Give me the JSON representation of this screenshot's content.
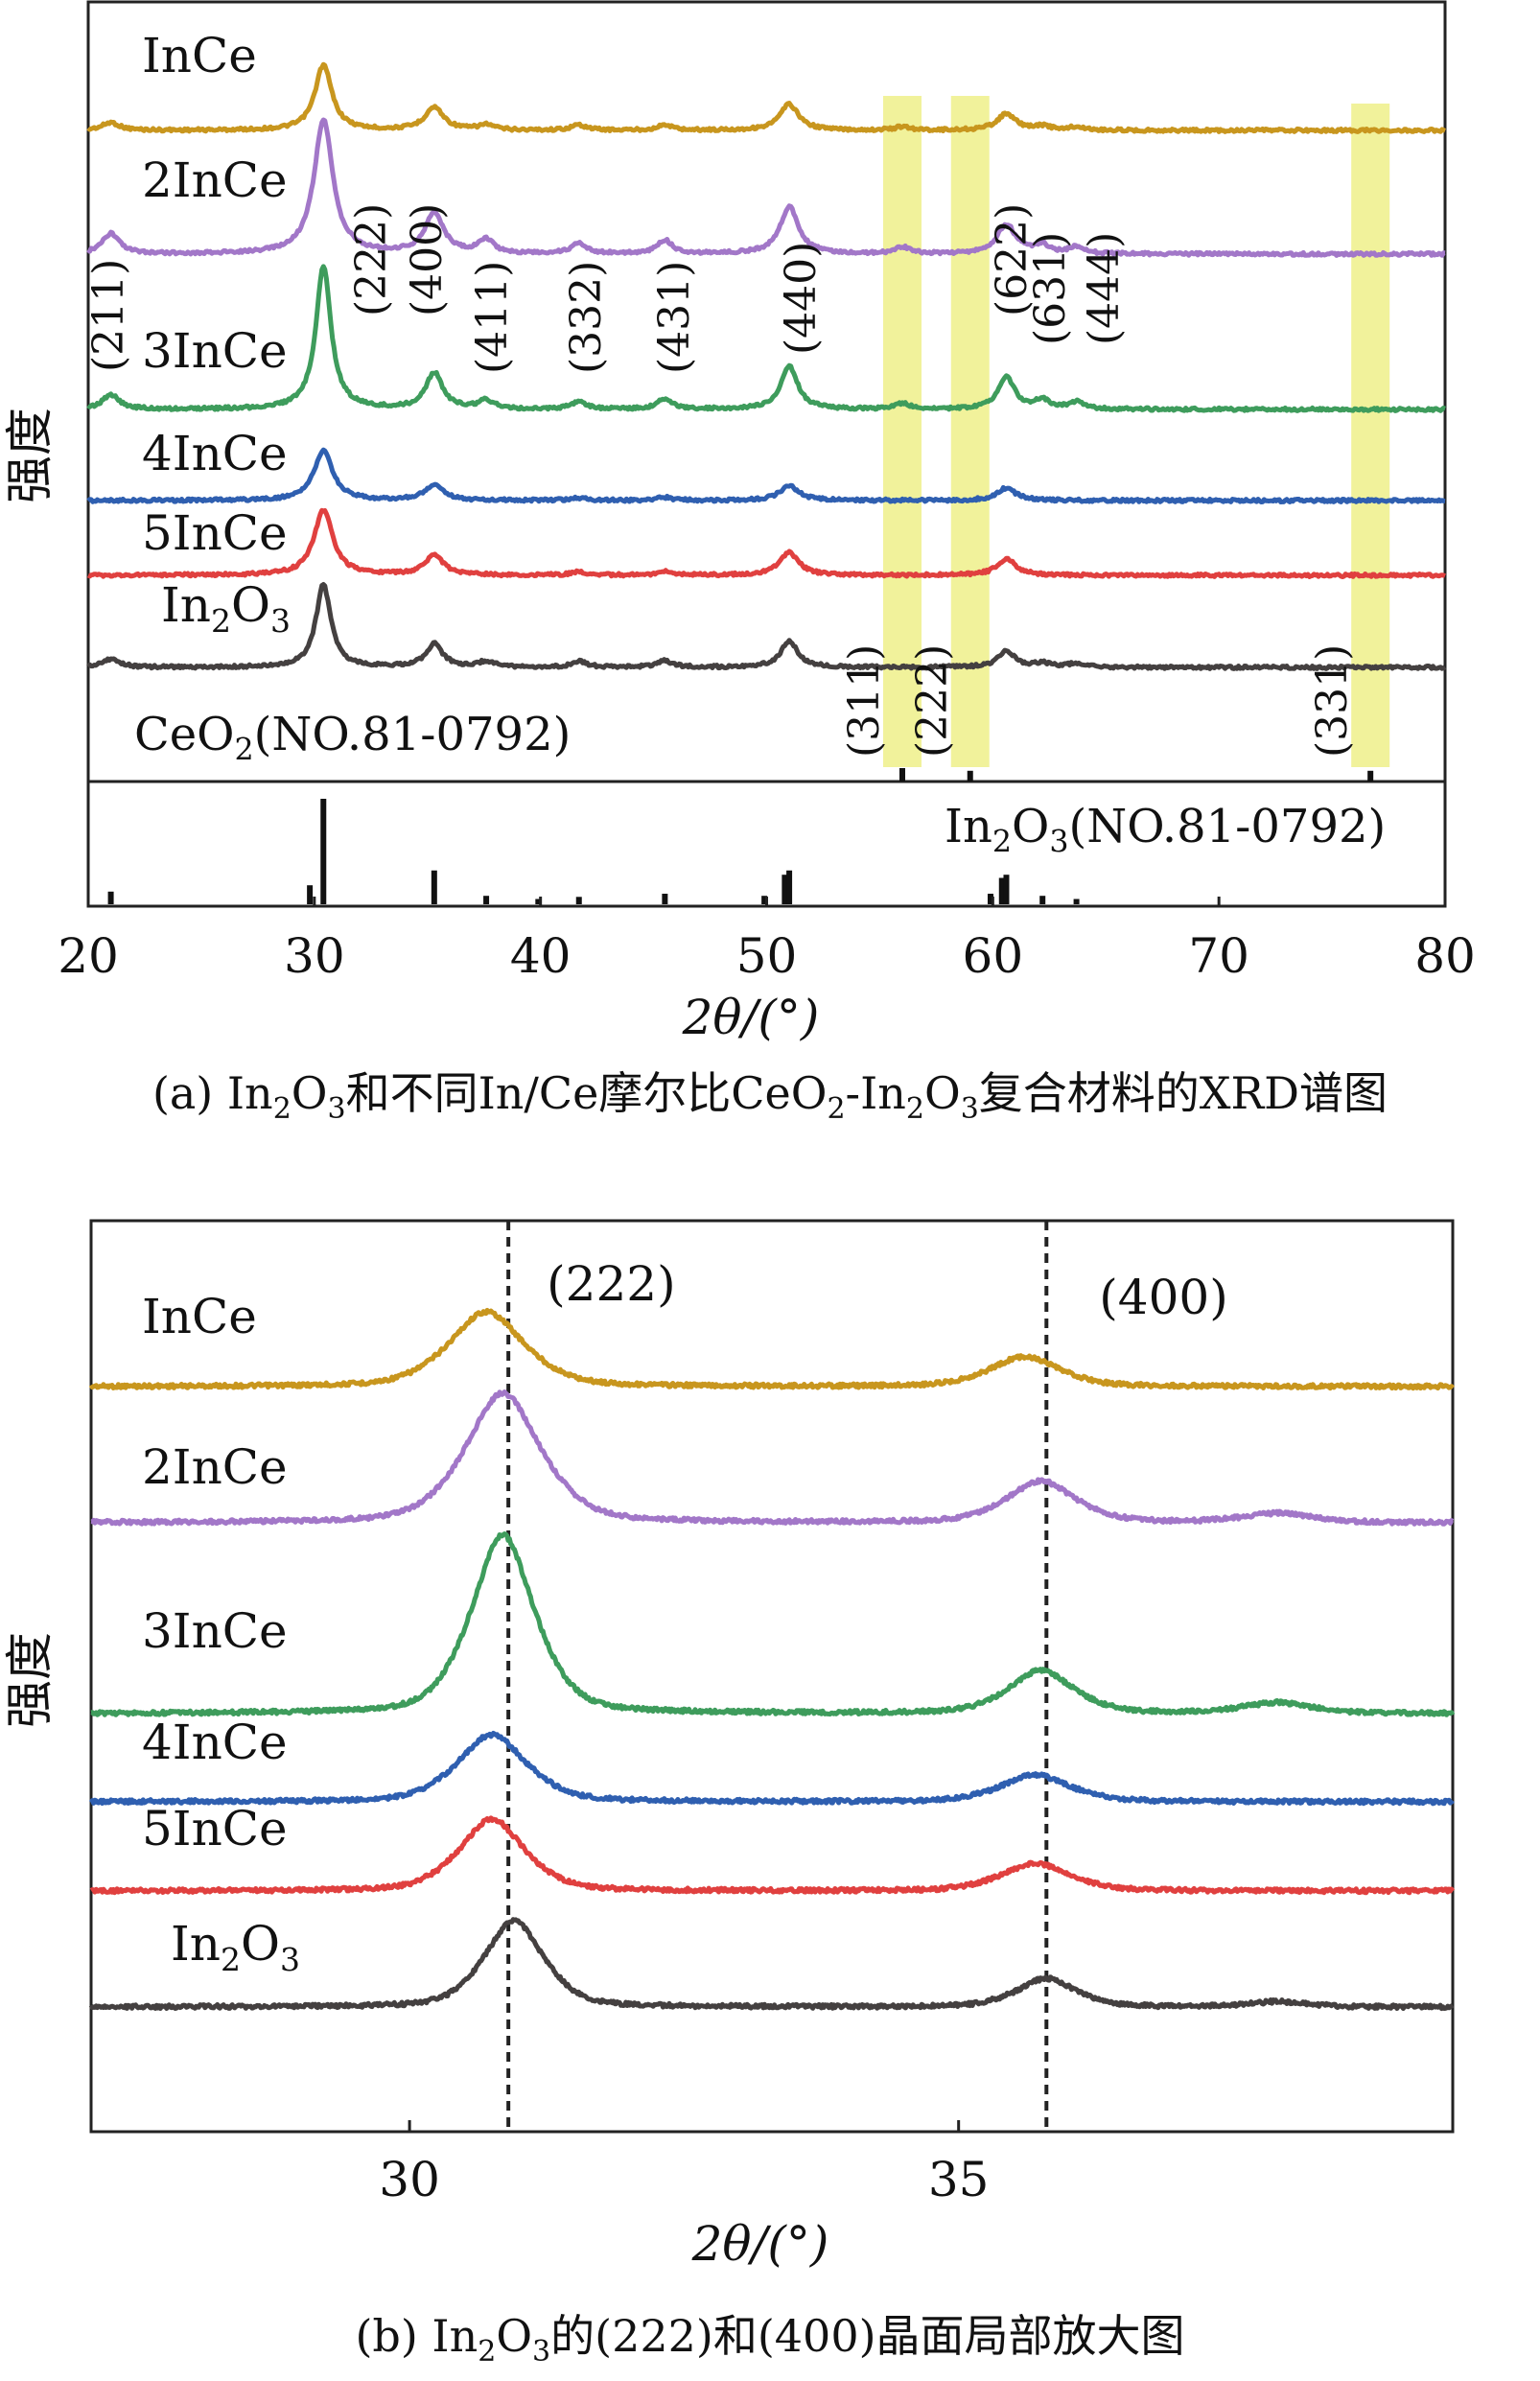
{
  "captions": {
    "a": {
      "pre": "(a) In",
      "s1": "2",
      "mid1": "O",
      "s2": "3",
      "mid2": "和不同In/Ce摩尔比CeO",
      "s3": "2",
      "mid3": "-In",
      "s4": "2",
      "mid4": "O",
      "s5": "3",
      "post": "复合材料的XRD谱图"
    },
    "b": {
      "pre": "(b) In",
      "s1": "2",
      "mid1": "O",
      "s2": "3",
      "post": "的(222)和(400)晶面局部放大图"
    }
  },
  "colors": {
    "InCe": "#c8961e",
    "2InCe": "#a277c8",
    "3InCe": "#3e9c5c",
    "4InCe": "#2f5fb0",
    "5InCe": "#e0403f",
    "In2O3": "#444040",
    "highlight": "#eef08a"
  },
  "chart_data": [
    {
      "type": "line",
      "panel": "a",
      "xlabel": "2θ/(°)",
      "ylabel": "强度",
      "xlim": [
        20,
        80
      ],
      "xticks": [
        20,
        30,
        40,
        50,
        60,
        70,
        80
      ],
      "grid": false,
      "series": [
        {
          "name": "InCe",
          "baseline": 0.92,
          "scale": 0.65,
          "peaks": [
            [
              21.0,
              0.12,
              0.45
            ],
            [
              30.4,
              1.0,
              0.45
            ],
            [
              35.3,
              0.35,
              0.5
            ],
            [
              37.6,
              0.08,
              0.4
            ],
            [
              41.7,
              0.08,
              0.4
            ],
            [
              45.5,
              0.08,
              0.4
            ],
            [
              51.0,
              0.4,
              0.5
            ],
            [
              56.0,
              0.05,
              0.4
            ],
            [
              60.6,
              0.25,
              0.5
            ],
            [
              62.2,
              0.06,
              0.4
            ],
            [
              63.7,
              0.05,
              0.4
            ]
          ]
        },
        {
          "name": "2InCe",
          "baseline": 0.92,
          "scale": 0.9,
          "peaks": [
            [
              21.0,
              0.15,
              0.45
            ],
            [
              30.4,
              1.0,
              0.5
            ],
            [
              35.3,
              0.3,
              0.5
            ],
            [
              37.6,
              0.1,
              0.4
            ],
            [
              41.7,
              0.08,
              0.4
            ],
            [
              45.5,
              0.1,
              0.4
            ],
            [
              51.0,
              0.35,
              0.5
            ],
            [
              56.0,
              0.05,
              0.4
            ],
            [
              60.6,
              0.22,
              0.5
            ],
            [
              62.2,
              0.06,
              0.4
            ],
            [
              63.7,
              0.05,
              0.4
            ]
          ]
        },
        {
          "name": "3InCe",
          "baseline": 0.93,
          "scale": 1.0,
          "peaks": [
            [
              21.0,
              0.1,
              0.45
            ],
            [
              30.4,
              1.0,
              0.4
            ],
            [
              35.3,
              0.25,
              0.45
            ],
            [
              37.6,
              0.06,
              0.4
            ],
            [
              41.7,
              0.05,
              0.4
            ],
            [
              45.5,
              0.07,
              0.4
            ],
            [
              51.0,
              0.3,
              0.45
            ],
            [
              56.0,
              0.04,
              0.4
            ],
            [
              60.6,
              0.22,
              0.45
            ],
            [
              62.2,
              0.06,
              0.4
            ],
            [
              63.7,
              0.05,
              0.4
            ]
          ]
        },
        {
          "name": "4InCe",
          "baseline": 0.95,
          "scale": 0.35,
          "peaks": [
            [
              30.4,
              1.0,
              0.5
            ],
            [
              35.3,
              0.3,
              0.5
            ],
            [
              51.0,
              0.3,
              0.5
            ],
            [
              60.6,
              0.25,
              0.5
            ],
            [
              41.7,
              0.05,
              0.4
            ],
            [
              45.5,
              0.06,
              0.4
            ]
          ]
        },
        {
          "name": "5InCe",
          "baseline": 0.95,
          "scale": 0.45,
          "peaks": [
            [
              30.4,
              1.0,
              0.5
            ],
            [
              35.3,
              0.3,
              0.5
            ],
            [
              51.0,
              0.35,
              0.5
            ],
            [
              60.6,
              0.25,
              0.5
            ],
            [
              41.7,
              0.05,
              0.4
            ],
            [
              45.5,
              0.06,
              0.4
            ]
          ]
        },
        {
          "name": "In2O3",
          "baseline": 0.92,
          "scale": 0.58,
          "peaks": [
            [
              21.0,
              0.1,
              0.45
            ],
            [
              30.4,
              1.0,
              0.4
            ],
            [
              35.3,
              0.28,
              0.45
            ],
            [
              37.6,
              0.07,
              0.4
            ],
            [
              41.7,
              0.07,
              0.4
            ],
            [
              45.5,
              0.08,
              0.4
            ],
            [
              51.0,
              0.32,
              0.45
            ],
            [
              60.6,
              0.2,
              0.45
            ],
            [
              62.2,
              0.05,
              0.4
            ],
            [
              63.7,
              0.05,
              0.4
            ]
          ]
        }
      ],
      "series_labels": [
        {
          "text": "InCe"
        },
        {
          "text": "2InCe"
        },
        {
          "text": "3InCe"
        },
        {
          "text": "4InCe"
        },
        {
          "text": "5InCe"
        },
        {
          "pre": "In",
          "s1": "2",
          "mid": "O",
          "s2": "3"
        }
      ],
      "miller_In2O3": [
        {
          "label": "(211)",
          "x": 21.0
        },
        {
          "label": "(222)",
          "x": 32.8
        },
        {
          "label": "(400)",
          "x": 35.3
        },
        {
          "label": "(411)",
          "x": 37.6
        },
        {
          "label": "(332)",
          "x": 41.7
        },
        {
          "label": "(431)",
          "x": 45.5
        },
        {
          "label": "(440)",
          "x": 51.0
        },
        {
          "label": "(622)",
          "x": 60.6
        },
        {
          "label": "(631)",
          "x": 62.2
        },
        {
          "label": "(444)",
          "x": 63.7
        }
      ],
      "highlight_bands_x": [
        56.0,
        59.0,
        76.7
      ],
      "miller_CeO2": [
        {
          "label": "(311)",
          "x": 56.0
        },
        {
          "label": "(222)",
          "x": 59.0
        },
        {
          "label": "(331)",
          "x": 76.7
        }
      ],
      "ref_labels": {
        "CeO2": {
          "pre": "CeO",
          "s1": "2",
          "post": "(NO.81-0792)"
        },
        "In2O3": {
          "pre": "In",
          "s1": "2",
          "mid": "O",
          "s2": "3",
          "post": "(NO.81-0792)"
        }
      },
      "reference_In2O3_sticks": [
        {
          "x": 21.0,
          "h": 0.12
        },
        {
          "x": 29.8,
          "h": 0.18
        },
        {
          "x": 30.4,
          "h": 1.0
        },
        {
          "x": 35.3,
          "h": 0.32
        },
        {
          "x": 37.6,
          "h": 0.08
        },
        {
          "x": 39.9,
          "h": 0.05
        },
        {
          "x": 41.7,
          "h": 0.07
        },
        {
          "x": 45.5,
          "h": 0.1
        },
        {
          "x": 49.9,
          "h": 0.08
        },
        {
          "x": 50.8,
          "h": 0.28
        },
        {
          "x": 51.0,
          "h": 0.32
        },
        {
          "x": 59.9,
          "h": 0.1
        },
        {
          "x": 60.4,
          "h": 0.25
        },
        {
          "x": 60.6,
          "h": 0.28
        },
        {
          "x": 62.2,
          "h": 0.08
        },
        {
          "x": 63.7,
          "h": 0.05
        }
      ],
      "reference_CeO2_sticks": [
        {
          "x": 56.0,
          "h": 1.0
        },
        {
          "x": 59.0,
          "h": 0.8
        },
        {
          "x": 76.7,
          "h": 0.8
        }
      ]
    },
    {
      "type": "line",
      "panel": "b",
      "xlabel": "2θ/(°)",
      "ylabel": "强度",
      "xlim": [
        27.1,
        39.5
      ],
      "xticks": [
        30,
        35
      ],
      "grid": false,
      "guide_lines_x": [
        30.9,
        35.8
      ],
      "guide_labels": [
        "(222)",
        "(400)"
      ],
      "series": [
        {
          "name": "InCe",
          "base": 0.3,
          "peaks": [
            [
              30.7,
              1.0,
              0.38
            ],
            [
              35.6,
              0.4,
              0.35
            ],
            [
              37.9,
              0.0,
              0.3
            ]
          ]
        },
        {
          "name": "2InCe",
          "base": 0.3,
          "peaks": [
            [
              30.85,
              1.0,
              0.38
            ],
            [
              35.75,
              0.32,
              0.35
            ],
            [
              37.9,
              0.07,
              0.35
            ]
          ]
        },
        {
          "name": "3InCe",
          "base": 0.3,
          "peaks": [
            [
              30.85,
              1.0,
              0.32
            ],
            [
              35.75,
              0.24,
              0.33
            ],
            [
              37.9,
              0.06,
              0.35
            ]
          ]
        },
        {
          "name": "4InCe",
          "base": 0.3,
          "peaks": [
            [
              30.75,
              1.0,
              0.35
            ],
            [
              35.7,
              0.4,
              0.35
            ]
          ]
        },
        {
          "name": "5InCe",
          "base": 0.3,
          "peaks": [
            [
              30.75,
              1.0,
              0.33
            ],
            [
              35.7,
              0.38,
              0.35
            ]
          ]
        },
        {
          "name": "In2O3",
          "base": 0.3,
          "peaks": [
            [
              30.95,
              1.0,
              0.3
            ],
            [
              35.8,
              0.33,
              0.3
            ],
            [
              37.9,
              0.06,
              0.3
            ]
          ]
        }
      ],
      "series_labels": [
        {
          "text": "InCe"
        },
        {
          "text": "2InCe"
        },
        {
          "text": "3InCe"
        },
        {
          "text": "4InCe"
        },
        {
          "text": "5InCe"
        },
        {
          "pre": "In",
          "s1": "2",
          "mid": "O",
          "s2": "3"
        }
      ]
    }
  ]
}
